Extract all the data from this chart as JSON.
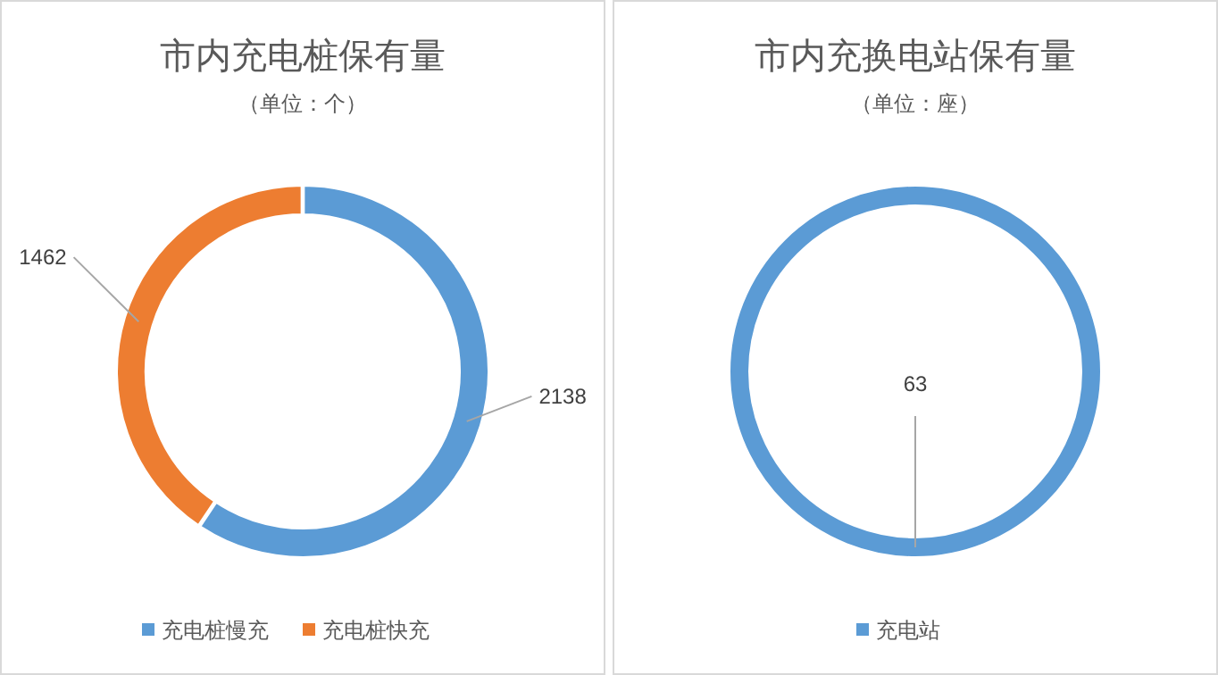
{
  "chart_data": [
    {
      "type": "donut",
      "title": "市内充电桩保有量",
      "subtitle": "（单位：个）",
      "categories": [
        "充电桩慢充",
        "充电桩快充"
      ],
      "values": [
        2138,
        1462
      ],
      "colors": [
        "#5b9bd5",
        "#ed7d31"
      ],
      "data_labels": true,
      "legend": "bottom"
    },
    {
      "type": "donut",
      "title": "市内充换电站保有量",
      "subtitle": "（单位：座）",
      "categories": [
        "充电站"
      ],
      "values": [
        63
      ],
      "colors": [
        "#5b9bd5"
      ],
      "data_labels": true,
      "legend": "bottom"
    }
  ]
}
